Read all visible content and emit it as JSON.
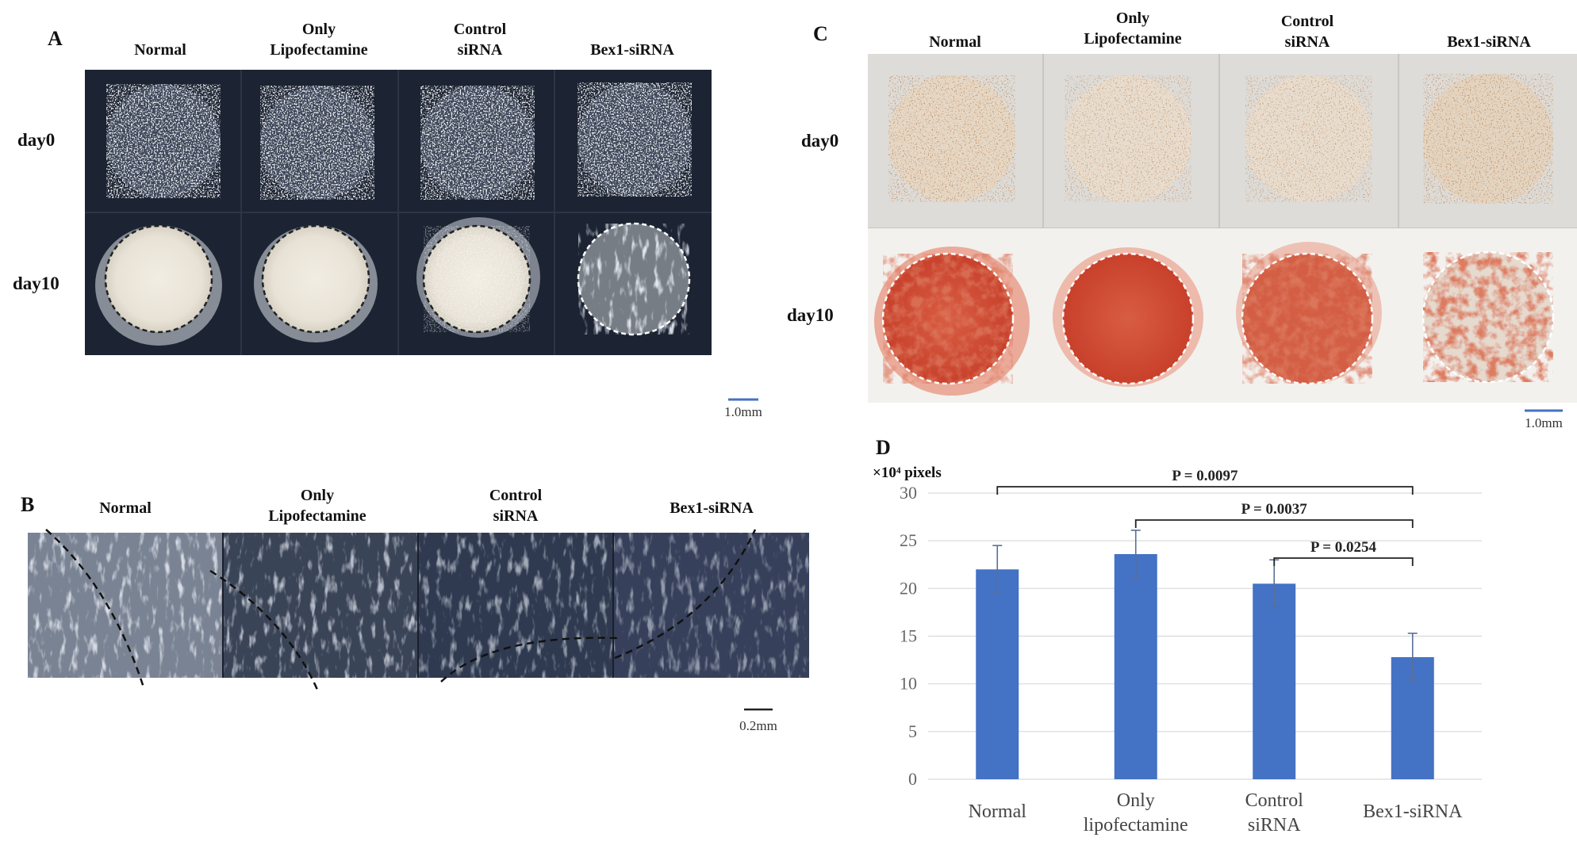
{
  "panels": {
    "a": {
      "letter": "A",
      "cols": [
        "Normal",
        "Only\nLipofectamine",
        "Control\nsiRNA",
        "Bex1-siRNA"
      ],
      "rows": [
        "day0",
        "day10"
      ],
      "scale": "1.0mm"
    },
    "b": {
      "letter": "B",
      "cols": [
        "Normal",
        "Only\nLipofectamine",
        "Control\nsiRNA",
        "Bex1-siRNA"
      ],
      "scale": "0.2mm"
    },
    "c": {
      "letter": "C",
      "cols": [
        "Normal",
        "Only\nLipofectamine",
        "Control\nsiRNA",
        "Bex1-siRNA"
      ],
      "rows": [
        "day0",
        "day10"
      ],
      "scale": "1.0mm"
    },
    "d": {
      "letter": "D"
    }
  },
  "colors": {
    "bar": "#4472c4",
    "dark_bg": "#1c2433",
    "stain": "#c9452e",
    "grid": "#d9d9d9"
  },
  "chart_data": {
    "type": "bar",
    "ylabel": "×10⁴ pixels",
    "categories": [
      "Normal",
      "Only\nlipofectamine",
      "Control\nsiRNA",
      "Bex1-siRNA"
    ],
    "values": [
      22.0,
      23.6,
      20.5,
      12.8
    ],
    "errors": [
      2.5,
      2.5,
      2.5,
      2.5
    ],
    "ylim": [
      0,
      30
    ],
    "yticks": [
      0,
      5,
      10,
      15,
      20,
      25,
      30
    ],
    "grid": true,
    "annotations": [
      {
        "text": "P = 0.0097",
        "from": 0,
        "to": 3
      },
      {
        "text": "P = 0.0037",
        "from": 1,
        "to": 3
      },
      {
        "text": "P = 0.0254",
        "from": 2,
        "to": 3
      }
    ]
  }
}
